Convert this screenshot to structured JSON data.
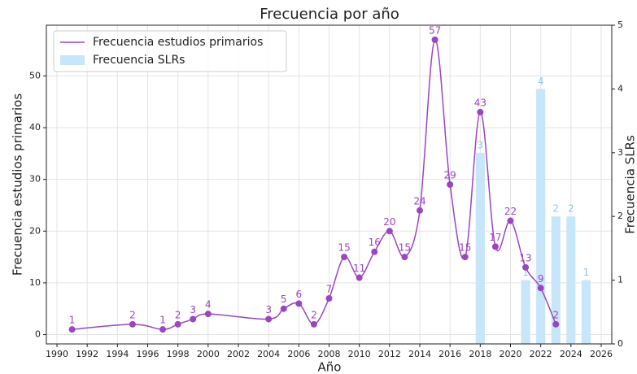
{
  "chart_data": {
    "type": "line",
    "title": "Frecuencia por año",
    "x_label": "Año",
    "y_label": "Frecuencia estudios primarios",
    "y2_label": "Frecuencia SLRs",
    "series": [
      {
        "name": "Frecuencia estudios primarios",
        "type": "line",
        "color": "#9b45c2",
        "smooth": true,
        "x": [
          1991,
          1995,
          1997,
          1998,
          1999,
          2000,
          2004,
          2005,
          2006,
          2007,
          2008,
          2009,
          2010,
          2011,
          2012,
          2013,
          2014,
          2015,
          2016,
          2017,
          2018,
          2019,
          2020,
          2021,
          2022,
          2023
        ],
        "values": [
          1,
          2,
          1,
          2,
          3,
          4,
          3,
          5,
          6,
          2,
          7,
          15,
          11,
          16,
          20,
          15,
          24,
          57,
          29,
          15,
          43,
          17,
          22,
          13,
          9,
          2
        ]
      },
      {
        "name": "Frecuencia SLRs",
        "type": "bar",
        "axis": "y2",
        "color": "#c7e6fa",
        "label_color": "#8cc8ee",
        "x": [
          2018,
          2021,
          2022,
          2023,
          2024,
          2025
        ],
        "values": [
          3,
          1,
          4,
          2,
          2,
          1
        ]
      }
    ],
    "xlim": [
      1989.3,
      2026.7
    ],
    "xticks": [
      1990,
      1992,
      1994,
      1996,
      1998,
      2000,
      2002,
      2004,
      2006,
      2008,
      2010,
      2012,
      2014,
      2016,
      2018,
      2020,
      2022,
      2024,
      2026
    ],
    "ylim": [
      -1.8,
      59.8
    ],
    "yticks": [
      0,
      10,
      20,
      30,
      40,
      50
    ],
    "y2lim": [
      0,
      5
    ],
    "y2ticks": [
      0,
      1,
      2,
      3,
      4,
      5
    ],
    "grid": true,
    "legend": "upper left"
  }
}
